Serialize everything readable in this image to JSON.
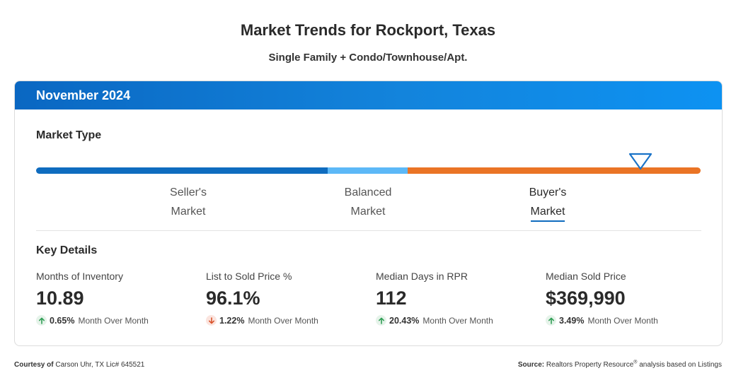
{
  "header": {
    "title": "Market Trends for Rockport, Texas",
    "subtitle": "Single Family + Condo/Townhouse/Apt."
  },
  "card": {
    "month": "November 2024",
    "market_type_label": "Market Type",
    "market_position_fraction": 0.91,
    "markets": [
      {
        "line1": "Seller's",
        "line2": "Market",
        "color": "#0f6cbf"
      },
      {
        "line1": "Balanced",
        "line2": "Market",
        "color": "#5cb8f7"
      },
      {
        "line1": "Buyer's",
        "line2": "Market",
        "color": "#ea7425",
        "selected": true
      }
    ],
    "key_details_label": "Key Details",
    "stats": [
      {
        "label": "Months of Inventory",
        "value": "10.89",
        "direction": "up",
        "change": "0.65%",
        "change_label": "Month Over Month"
      },
      {
        "label": "List to Sold Price %",
        "value": "96.1%",
        "direction": "down",
        "change": "1.22%",
        "change_label": "Month Over Month"
      },
      {
        "label": "Median Days in RPR",
        "value": "112",
        "direction": "up",
        "change": "20.43%",
        "change_label": "Month Over Month"
      },
      {
        "label": "Median Sold Price",
        "value": "$369,990",
        "direction": "up",
        "change": "3.49%",
        "change_label": "Month Over Month"
      }
    ]
  },
  "footer": {
    "courtesy_prefix": "Courtesy of",
    "courtesy_text": "Carson Uhr, TX Lic# 645521",
    "source_prefix": "Source:",
    "source_text_a": "Realtors Property Resource",
    "source_reg": "®",
    "source_text_b": " analysis based on Listings"
  },
  "colors": {
    "header_gradient_start": "#0a67c2",
    "header_gradient_end": "#0d92f2",
    "up_arrow": "#2f9e55",
    "down_arrow": "#d9532c"
  },
  "icons": {
    "up": "arrow-up-icon",
    "down": "arrow-down-icon",
    "indicator": "triangle-down-icon"
  }
}
